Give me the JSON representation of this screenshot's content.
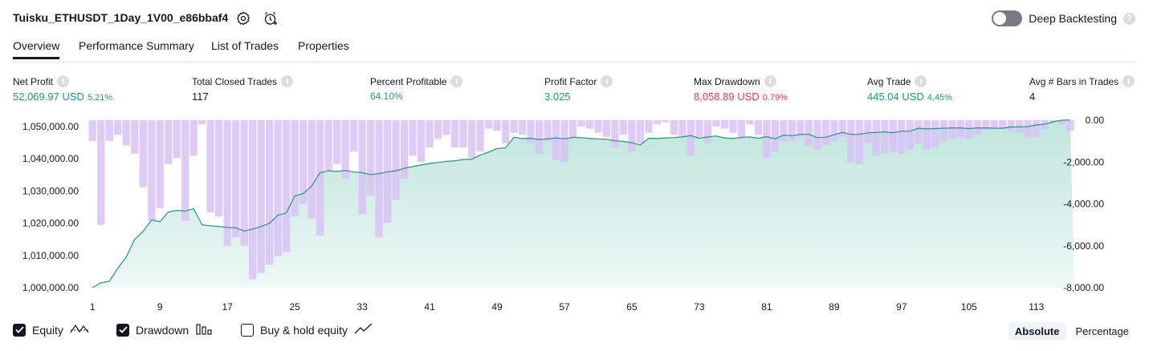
{
  "header": {
    "title": "Tuisku_ETHUSDT_1Day_1V00_e86bbaf4",
    "settings_icon": "gear-icon",
    "alert_icon": "alarm-clock-plus-icon",
    "deep_backtesting_label": "Deep Backtesting",
    "deep_backtesting_enabled": false
  },
  "tabs": [
    "Overview",
    "Performance Summary",
    "List of Trades",
    "Properties"
  ],
  "active_tab": "Overview",
  "stats": {
    "net_profit": {
      "label": "Net Profit",
      "value": "52,069.97 USD",
      "pct": "5.21%"
    },
    "total_closed_trades": {
      "label": "Total Closed Trades",
      "value": "117"
    },
    "percent_profitable": {
      "label": "Percent Profitable",
      "value": "64.10%"
    },
    "profit_factor": {
      "label": "Profit Factor",
      "value": "3.025"
    },
    "max_drawdown": {
      "label": "Max Drawdown",
      "value": "8,058.89 USD",
      "pct": "0.79%"
    },
    "avg_trade": {
      "label": "Avg Trade",
      "value": "445.04 USD",
      "pct": "4.45%"
    },
    "avg_bars": {
      "label": "Avg # Bars in Trades",
      "value": "4"
    }
  },
  "legend": {
    "equity": {
      "label": "Equity",
      "checked": true
    },
    "drawdown": {
      "label": "Drawdown",
      "checked": true
    },
    "buy_hold": {
      "label": "Buy & hold equity",
      "checked": false
    }
  },
  "view_mode": {
    "options": [
      "Absolute",
      "Percentage"
    ],
    "selected": "Absolute"
  },
  "colors": {
    "equity_line": "#22977f",
    "equity_fill_top": "#bfe6dc",
    "drawdown_bar": "#d8c2f7",
    "text_green": "#22977f",
    "text_red": "#f23645"
  },
  "chart_data": {
    "type": "area",
    "x_ticks": [
      "1",
      "9",
      "17",
      "25",
      "33",
      "41",
      "49",
      "57",
      "65",
      "73",
      "81",
      "89",
      "97",
      "105",
      "113"
    ],
    "left_axis": {
      "ticks": [
        "1,050,000.00",
        "1,040,000.00",
        "1,030,000.00",
        "1,020,000.00",
        "1,010,000.00",
        "1,000,000.00"
      ],
      "range": [
        1000000,
        1052000
      ]
    },
    "right_axis": {
      "ticks": [
        "0.00",
        "-2,000.00",
        "-4,000.00",
        "-6,000.00",
        "-8,000.00"
      ],
      "range": [
        -8000,
        0
      ]
    },
    "series": [
      {
        "name": "Equity",
        "type": "area",
        "values": [
          1000000,
          1001500,
          1002000,
          1006000,
          1009500,
          1015000,
          1017500,
          1021000,
          1020500,
          1023500,
          1024000,
          1023800,
          1024500,
          1019500,
          1019200,
          1019000,
          1018700,
          1018600,
          1017600,
          1018200,
          1019000,
          1020000,
          1022500,
          1023200,
          1028500,
          1029200,
          1031500,
          1035700,
          1036300,
          1036100,
          1036400,
          1035900,
          1035700,
          1035100,
          1035400,
          1036000,
          1036300,
          1037100,
          1037600,
          1038100,
          1038600,
          1038900,
          1039200,
          1039400,
          1039800,
          1039900,
          1041200,
          1042100,
          1043200,
          1043400,
          1046700,
          1046300,
          1046400,
          1046000,
          1046200,
          1046500,
          1046200,
          1046700,
          1046600,
          1046300,
          1046200,
          1046100,
          1045600,
          1045400,
          1045000,
          1044300,
          1046400,
          1046300,
          1046500,
          1046600,
          1046800,
          1047200,
          1046400,
          1046800,
          1047100,
          1046500,
          1046300,
          1046700,
          1046800,
          1046400,
          1046900,
          1046200,
          1047400,
          1047200,
          1047600,
          1047600,
          1046600,
          1046700,
          1047500,
          1048200,
          1047600,
          1047600,
          1048100,
          1048200,
          1048400,
          1048100,
          1048600,
          1048600,
          1049500,
          1049300,
          1049400,
          1049500,
          1049600,
          1049600,
          1049400,
          1049600,
          1049600,
          1049500,
          1049500,
          1049900,
          1049900,
          1050000,
          1050500,
          1050800,
          1051500,
          1052000,
          1052069.97
        ]
      },
      {
        "name": "Drawdown",
        "type": "bar",
        "values": [
          -1000,
          -5000,
          -1000,
          -700,
          -1200,
          -1600,
          -3200,
          -4800,
          -4200,
          -2100,
          -1800,
          -4800,
          -1700,
          -200,
          -4400,
          -4600,
          -6000,
          -5600,
          -6000,
          -7600,
          -7300,
          -6900,
          -6500,
          -6300,
          -4600,
          -4000,
          -4700,
          -5500,
          -2400,
          -2100,
          -2800,
          -1500,
          -4500,
          -3600,
          -5600,
          -4900,
          -3800,
          -2800,
          -1700,
          -2000,
          -1300,
          -900,
          -700,
          -1300,
          -1300,
          -1800,
          -1500,
          -400,
          -500,
          -1100,
          -600,
          -700,
          -1100,
          -1600,
          -1000,
          -1900,
          -2000,
          -900,
          -300,
          -400,
          -600,
          -800,
          -1300,
          -700,
          -1500,
          -1100,
          -600,
          -200,
          -100,
          -700,
          -800,
          -1700,
          -800,
          -1100,
          -300,
          -400,
          -600,
          -900,
          -200,
          -700,
          -1800,
          -1500,
          -1000,
          -1000,
          -800,
          -1200,
          -1400,
          -1200,
          -1000,
          -800,
          -2000,
          -2100,
          -1100,
          -1700,
          -1600,
          -1500,
          -1600,
          -1400,
          -1100,
          -1400,
          -1300,
          -1000,
          -900,
          -800,
          -900,
          -700,
          -500,
          -400,
          -400,
          -500,
          -600,
          -800,
          -800,
          -400,
          -100,
          -200,
          -500
        ]
      }
    ]
  }
}
